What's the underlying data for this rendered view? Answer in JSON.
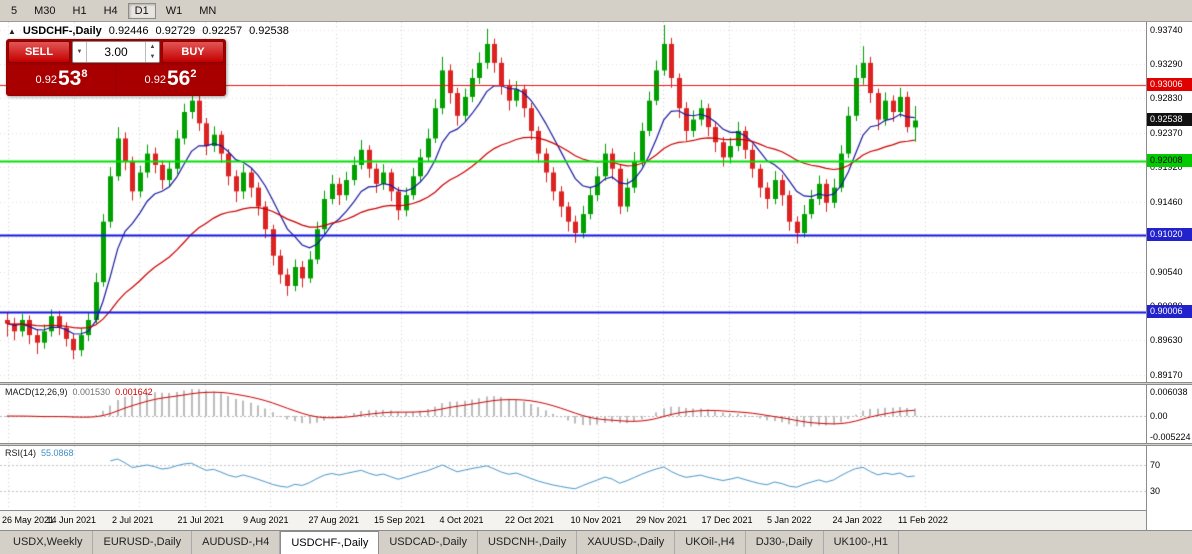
{
  "toolbar": {
    "timeframes": [
      "5",
      "M30",
      "H1",
      "H4",
      "D1",
      "W1",
      "MN"
    ],
    "active": "D1"
  },
  "header": {
    "collapse_arrow": "▲",
    "symbol": "USDCHF-,Daily",
    "open": "0.92446",
    "high": "0.92729",
    "low": "0.92257",
    "close": "0.92538"
  },
  "icons": {
    "spinner_up": "▲",
    "spinner_down": "▼",
    "volume_dropdown": "▼"
  },
  "trade_panel": {
    "sell_label": "SELL",
    "buy_label": "BUY",
    "volume": "3.00",
    "sell_price_prefix": "0.92",
    "sell_price_big": "53",
    "sell_price_sup": "8",
    "buy_price_prefix": "0.92",
    "buy_price_big": "56",
    "buy_price_sup": "2"
  },
  "price_scale": {
    "labels": [
      "0.93740",
      "0.93290",
      "0.92830",
      "0.92370",
      "0.91920",
      "0.91460",
      "0.91000",
      "0.90540",
      "0.90080",
      "0.89630",
      "0.89170"
    ],
    "badges": [
      {
        "text": "0.93006",
        "value": 0.93006,
        "bg": "#e00000",
        "fg": "#ffffff"
      },
      {
        "text": "0.92538",
        "value": 0.92538,
        "bg": "#111111",
        "fg": "#ffffff"
      },
      {
        "text": "0.92008",
        "value": 0.92008,
        "bg": "#00cc00",
        "fg": "#000000"
      },
      {
        "text": "0.91020",
        "value": 0.9102,
        "bg": "#2222cc",
        "fg": "#ffffff"
      },
      {
        "text": "0.90006",
        "value": 0.90006,
        "bg": "#2222cc",
        "fg": "#ffffff"
      }
    ]
  },
  "macd_panel": {
    "label": "MACD(12,26,9)",
    "value1": "0.001530",
    "value2": "0.001642",
    "scale_top": "0.006038",
    "scale_zero": "0.00",
    "scale_bottom": "-0.005224"
  },
  "rsi_panel": {
    "label": "RSI(14)",
    "value": "55.0868",
    "level_labels": [
      "70",
      "30"
    ]
  },
  "tabs": [
    {
      "label": "USDX,Weekly",
      "active": false
    },
    {
      "label": "EURUSD-,Daily",
      "active": false
    },
    {
      "label": "AUDUSD-,H4",
      "active": false
    },
    {
      "label": "USDCHF-,Daily",
      "active": true
    },
    {
      "label": "USDCAD-,Daily",
      "active": false
    },
    {
      "label": "USDCNH-,Daily",
      "active": false
    },
    {
      "label": "XAUUSD-,Daily",
      "active": false
    },
    {
      "label": "UKOil-,H4",
      "active": false
    },
    {
      "label": "DJ30-,Daily",
      "active": false
    },
    {
      "label": "UK100-,H1",
      "active": false
    }
  ],
  "chart_data": {
    "type": "candlestick",
    "title": "USDCHF-,Daily",
    "symbol": "USDCHF",
    "timeframe": "Daily",
    "last_ohlc": {
      "open": 0.92446,
      "high": 0.92729,
      "low": 0.92257,
      "close": 0.92538
    },
    "ylim": [
      0.8908,
      0.9384
    ],
    "x_ticks": [
      "26 May 2021",
      "14 Jun 2021",
      "2 Jul 2021",
      "21 Jul 2021",
      "9 Aug 2021",
      "27 Aug 2021",
      "15 Sep 2021",
      "4 Oct 2021",
      "22 Oct 2021",
      "10 Nov 2021",
      "29 Nov 2021",
      "17 Dec 2021",
      "5 Jan 2022",
      "24 Jan 2022",
      "11 Feb 2022"
    ],
    "up_color": "#00a000",
    "down_color": "#dd2222",
    "hlines": [
      {
        "value": 0.93006,
        "color": "#f01414",
        "width": 1
      },
      {
        "value": 0.92008,
        "color": "#00e000",
        "width": 2
      },
      {
        "value": 0.9102,
        "color": "#1414e0",
        "width": 2
      },
      {
        "value": 0.90006,
        "color": "#1414e0",
        "width": 2
      }
    ],
    "ma_overlays": [
      {
        "period": 9,
        "color": "#1a1aa0"
      },
      {
        "period": 34,
        "color": "#cc0000"
      }
    ],
    "indicators": [
      {
        "name": "MACD",
        "params": [
          12,
          26,
          9
        ],
        "current": [
          0.00153,
          0.001642
        ],
        "yticks": [
          0.006038,
          0.0,
          -0.005224
        ]
      },
      {
        "name": "RSI",
        "params": [
          14
        ],
        "current": 55.0868,
        "levels": [
          30,
          70
        ]
      }
    ],
    "candles": [
      [
        0.899,
        0.9,
        0.8968,
        0.8985
      ],
      [
        0.8985,
        0.8993,
        0.8963,
        0.8975
      ],
      [
        0.8975,
        0.8998,
        0.8968,
        0.899
      ],
      [
        0.899,
        0.8996,
        0.8958,
        0.897
      ],
      [
        0.897,
        0.8978,
        0.8945,
        0.896
      ],
      [
        0.896,
        0.8984,
        0.8952,
        0.8975
      ],
      [
        0.8975,
        0.9004,
        0.8968,
        0.8995
      ],
      [
        0.8995,
        0.9002,
        0.897,
        0.898
      ],
      [
        0.898,
        0.8987,
        0.8955,
        0.8965
      ],
      [
        0.8965,
        0.8972,
        0.8938,
        0.895
      ],
      [
        0.895,
        0.8979,
        0.8942,
        0.897
      ],
      [
        0.897,
        0.8999,
        0.8962,
        0.899
      ],
      [
        0.899,
        0.9052,
        0.8985,
        0.904
      ],
      [
        0.904,
        0.913,
        0.9034,
        0.912
      ],
      [
        0.912,
        0.9192,
        0.9112,
        0.918
      ],
      [
        0.918,
        0.9245,
        0.9174,
        0.923
      ],
      [
        0.923,
        0.9238,
        0.9188,
        0.92
      ],
      [
        0.92,
        0.9206,
        0.9148,
        0.916
      ],
      [
        0.916,
        0.9194,
        0.9152,
        0.9185
      ],
      [
        0.9185,
        0.9222,
        0.9178,
        0.921
      ],
      [
        0.921,
        0.9218,
        0.9184,
        0.9195
      ],
      [
        0.9195,
        0.9201,
        0.9163,
        0.9175
      ],
      [
        0.9175,
        0.92,
        0.9166,
        0.919
      ],
      [
        0.919,
        0.9241,
        0.9183,
        0.923
      ],
      [
        0.923,
        0.9276,
        0.9222,
        0.9265
      ],
      [
        0.9265,
        0.9293,
        0.9256,
        0.928
      ],
      [
        0.928,
        0.9288,
        0.924,
        0.925
      ],
      [
        0.925,
        0.9257,
        0.9208,
        0.922
      ],
      [
        0.922,
        0.9246,
        0.9212,
        0.9235
      ],
      [
        0.9235,
        0.924,
        0.9198,
        0.921
      ],
      [
        0.921,
        0.9216,
        0.9168,
        0.918
      ],
      [
        0.918,
        0.9188,
        0.9146,
        0.916
      ],
      [
        0.916,
        0.9196,
        0.915,
        0.9185
      ],
      [
        0.9185,
        0.9191,
        0.9152,
        0.9165
      ],
      [
        0.9165,
        0.9172,
        0.9128,
        0.914
      ],
      [
        0.914,
        0.9147,
        0.9098,
        0.911
      ],
      [
        0.911,
        0.9116,
        0.9062,
        0.9075
      ],
      [
        0.9075,
        0.9083,
        0.9038,
        0.905
      ],
      [
        0.905,
        0.9058,
        0.9022,
        0.9035
      ],
      [
        0.9035,
        0.907,
        0.9028,
        0.906
      ],
      [
        0.906,
        0.9068,
        0.9033,
        0.9045
      ],
      [
        0.9045,
        0.9081,
        0.9039,
        0.907
      ],
      [
        0.907,
        0.912,
        0.9064,
        0.911
      ],
      [
        0.911,
        0.9161,
        0.9103,
        0.915
      ],
      [
        0.915,
        0.9182,
        0.9143,
        0.917
      ],
      [
        0.917,
        0.9178,
        0.9142,
        0.9155
      ],
      [
        0.9155,
        0.9186,
        0.9148,
        0.9175
      ],
      [
        0.9175,
        0.9206,
        0.9168,
        0.9195
      ],
      [
        0.9195,
        0.9228,
        0.9189,
        0.9215
      ],
      [
        0.9215,
        0.9221,
        0.9178,
        0.919
      ],
      [
        0.919,
        0.9197,
        0.9158,
        0.917
      ],
      [
        0.917,
        0.9196,
        0.9162,
        0.9185
      ],
      [
        0.9185,
        0.919,
        0.9147,
        0.916
      ],
      [
        0.916,
        0.9166,
        0.9122,
        0.9135
      ],
      [
        0.9135,
        0.9165,
        0.9127,
        0.9155
      ],
      [
        0.9155,
        0.9191,
        0.9149,
        0.918
      ],
      [
        0.918,
        0.9216,
        0.9173,
        0.9205
      ],
      [
        0.9205,
        0.9243,
        0.9199,
        0.923
      ],
      [
        0.923,
        0.9282,
        0.9224,
        0.927
      ],
      [
        0.927,
        0.9338,
        0.9262,
        0.932
      ],
      [
        0.932,
        0.9328,
        0.9276,
        0.929
      ],
      [
        0.929,
        0.9297,
        0.9247,
        0.926
      ],
      [
        0.926,
        0.9296,
        0.9253,
        0.9285
      ],
      [
        0.9285,
        0.9322,
        0.9278,
        0.931
      ],
      [
        0.931,
        0.9344,
        0.9302,
        0.933
      ],
      [
        0.933,
        0.9375,
        0.9322,
        0.9355
      ],
      [
        0.9355,
        0.9362,
        0.9317,
        0.933
      ],
      [
        0.933,
        0.9337,
        0.9288,
        0.93
      ],
      [
        0.93,
        0.9308,
        0.9267,
        0.928
      ],
      [
        0.928,
        0.9306,
        0.9272,
        0.9295
      ],
      [
        0.9295,
        0.9301,
        0.9258,
        0.927
      ],
      [
        0.927,
        0.9277,
        0.9228,
        0.924
      ],
      [
        0.924,
        0.9246,
        0.9198,
        0.921
      ],
      [
        0.921,
        0.9217,
        0.9172,
        0.9185
      ],
      [
        0.9185,
        0.9192,
        0.9148,
        0.916
      ],
      [
        0.916,
        0.9167,
        0.9126,
        0.914
      ],
      [
        0.914,
        0.9146,
        0.9107,
        0.912
      ],
      [
        0.912,
        0.9128,
        0.9092,
        0.9105
      ],
      [
        0.9105,
        0.9141,
        0.9098,
        0.913
      ],
      [
        0.913,
        0.9166,
        0.9123,
        0.9155
      ],
      [
        0.9155,
        0.9192,
        0.9147,
        0.918
      ],
      [
        0.918,
        0.9223,
        0.9174,
        0.921
      ],
      [
        0.921,
        0.9217,
        0.9176,
        0.919
      ],
      [
        0.919,
        0.9196,
        0.913,
        0.914
      ],
      [
        0.914,
        0.9177,
        0.9133,
        0.9165
      ],
      [
        0.9165,
        0.9212,
        0.9158,
        0.92
      ],
      [
        0.92,
        0.9251,
        0.9193,
        0.924
      ],
      [
        0.924,
        0.9292,
        0.9233,
        0.928
      ],
      [
        0.928,
        0.9333,
        0.9274,
        0.932
      ],
      [
        0.932,
        0.938,
        0.9313,
        0.9355
      ],
      [
        0.9355,
        0.9363,
        0.9297,
        0.931
      ],
      [
        0.931,
        0.9316,
        0.9257,
        0.927
      ],
      [
        0.927,
        0.9278,
        0.9227,
        0.924
      ],
      [
        0.924,
        0.9267,
        0.9232,
        0.9255
      ],
      [
        0.9255,
        0.9281,
        0.9247,
        0.927
      ],
      [
        0.927,
        0.9276,
        0.9233,
        0.9245
      ],
      [
        0.9245,
        0.9252,
        0.9212,
        0.9225
      ],
      [
        0.9225,
        0.9232,
        0.9193,
        0.9205
      ],
      [
        0.9205,
        0.9231,
        0.9197,
        0.922
      ],
      [
        0.922,
        0.9252,
        0.9213,
        0.924
      ],
      [
        0.924,
        0.9246,
        0.9203,
        0.9215
      ],
      [
        0.9215,
        0.9222,
        0.9178,
        0.919
      ],
      [
        0.919,
        0.9196,
        0.9152,
        0.9165
      ],
      [
        0.9165,
        0.9172,
        0.9137,
        0.915
      ],
      [
        0.915,
        0.9187,
        0.9143,
        0.9175
      ],
      [
        0.9175,
        0.9182,
        0.9141,
        0.9155
      ],
      [
        0.9155,
        0.9161,
        0.9108,
        0.912
      ],
      [
        0.912,
        0.9127,
        0.9091,
        0.9105
      ],
      [
        0.9105,
        0.9142,
        0.9099,
        0.913
      ],
      [
        0.913,
        0.9162,
        0.9124,
        0.915
      ],
      [
        0.915,
        0.9181,
        0.9142,
        0.917
      ],
      [
        0.917,
        0.9176,
        0.9133,
        0.9145
      ],
      [
        0.9145,
        0.9177,
        0.9138,
        0.9165
      ],
      [
        0.9165,
        0.9221,
        0.9159,
        0.921
      ],
      [
        0.921,
        0.9272,
        0.9204,
        0.926
      ],
      [
        0.926,
        0.9327,
        0.9253,
        0.931
      ],
      [
        0.931,
        0.9352,
        0.9301,
        0.933
      ],
      [
        0.933,
        0.9338,
        0.9277,
        0.929
      ],
      [
        0.929,
        0.9296,
        0.9241,
        0.9255
      ],
      [
        0.9255,
        0.9291,
        0.9247,
        0.928
      ],
      [
        0.928,
        0.9287,
        0.9252,
        0.9265
      ],
      [
        0.9265,
        0.9297,
        0.9258,
        0.9285
      ],
      [
        0.9285,
        0.9292,
        0.9238,
        0.9245
      ],
      [
        0.92446,
        0.92729,
        0.92257,
        0.92538
      ]
    ]
  }
}
